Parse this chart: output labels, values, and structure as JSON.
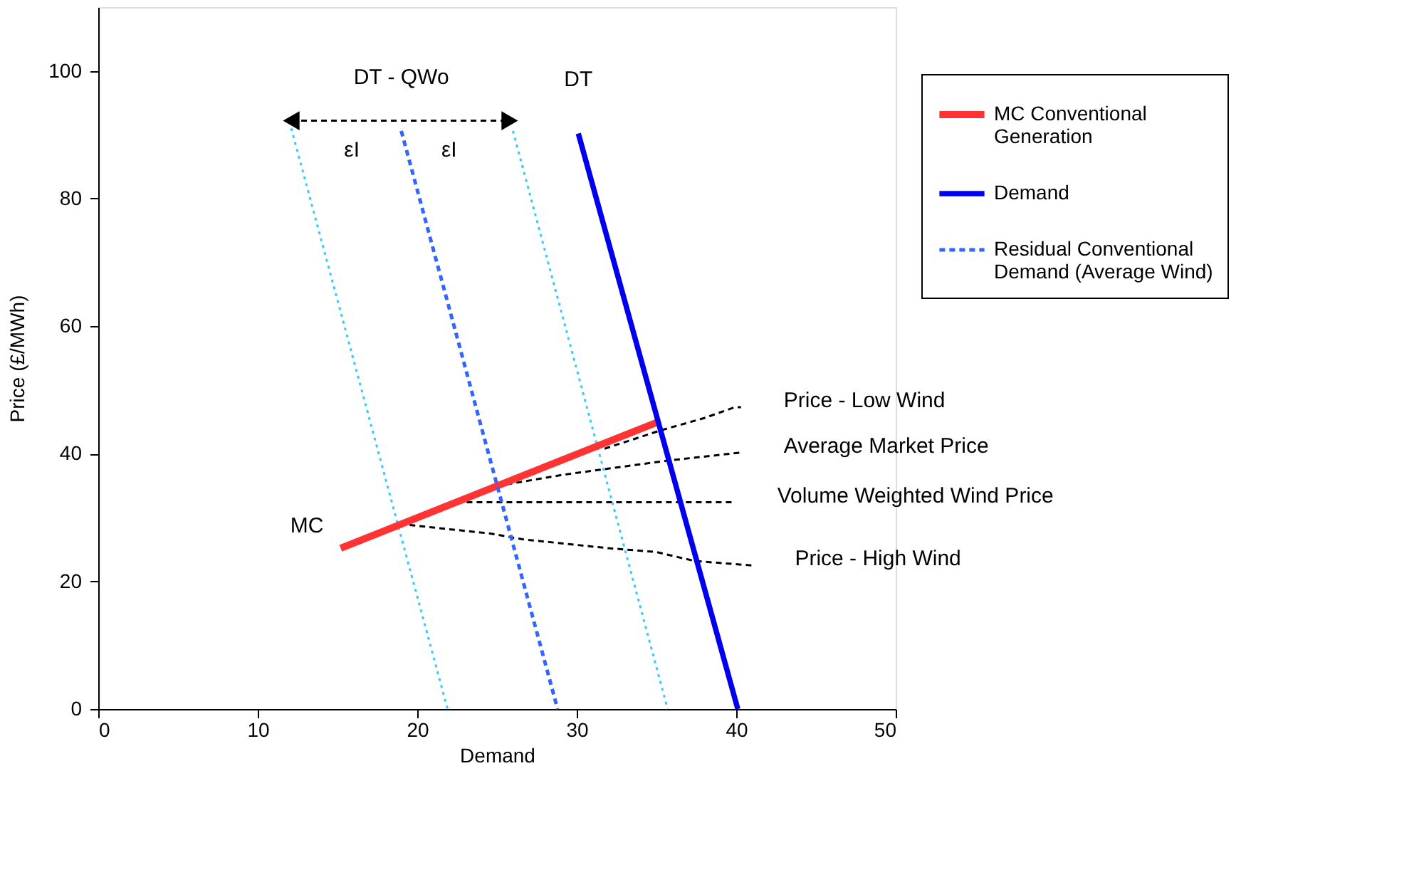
{
  "chart_data": {
    "type": "line",
    "xlabel": "Demand",
    "ylabel": "Price (£/MWh)",
    "xlim": [
      0,
      50
    ],
    "ylim": [
      0,
      110
    ],
    "xticks": [
      0,
      10,
      20,
      30,
      40,
      50
    ],
    "yticks": [
      0,
      20,
      40,
      60,
      80,
      100
    ],
    "grid": false,
    "legend": "right",
    "series": [
      {
        "name": "MC Conventional Generation",
        "color": "#ff3333",
        "line_style": "solid",
        "x": [
          15.2,
          35.0
        ],
        "values": [
          25.2,
          44.9
        ]
      },
      {
        "name": "Demand",
        "color": "#0000ee",
        "line_style": "solid",
        "x": [
          30.1,
          40.1
        ],
        "values": [
          90.2,
          0
        ]
      },
      {
        "name": "Residual Conventional Demand (Average Wind)",
        "color": "#3366ff",
        "line_style": "dashed",
        "x": [
          19.0,
          28.8
        ],
        "values": [
          90.6,
          0
        ]
      },
      {
        "color": "#33ccff",
        "line_style": "dotted",
        "x": [
          12.1,
          21.9
        ],
        "values": [
          91.0,
          0
        ]
      },
      {
        "color": "#33ccff",
        "line_style": "dotted",
        "x": [
          26.0,
          35.7
        ],
        "values": [
          90.6,
          0
        ]
      },
      {
        "color": "#000000",
        "line_style": "dashed",
        "x": [
          31.75,
          35.3,
          38.0,
          39.9,
          40.3
        ],
        "values": [
          40.8,
          43.7,
          45.6,
          47.3,
          47.3
        ]
      },
      {
        "color": "#000000",
        "line_style": "dashed",
        "x": [
          25.6,
          29.1,
          35.6,
          40.3
        ],
        "values": [
          35.2,
          36.7,
          38.9,
          40.2
        ]
      },
      {
        "color": "#000000",
        "line_style": "dashed",
        "x": [
          23.1,
          39.9
        ],
        "values": [
          32.4,
          32.4
        ]
      },
      {
        "color": "#000000",
        "line_style": "dashed",
        "x": [
          18.9,
          24.6,
          26.6,
          32.0,
          35.0,
          37.4,
          41.0
        ],
        "values": [
          29.0,
          27.5,
          26.6,
          25.2,
          24.6,
          23.2,
          22.5
        ]
      },
      {
        "color": "#000000",
        "line_style": "dashed",
        "marker": "triangle",
        "x": [
          12.1,
          25.8
        ],
        "values": [
          92.2,
          92.2
        ]
      }
    ],
    "annotations": [
      {
        "text": "MC",
        "x": 15.2,
        "y": 25.2
      },
      {
        "text": "DT - QWo",
        "x": 19.0,
        "y": 90.6
      },
      {
        "text": "DT",
        "x": 30.1,
        "y": 90.2
      },
      {
        "text": "εI",
        "x": 15.9,
        "y": 92.2
      },
      {
        "text": "εI",
        "x": 22.0,
        "y": 92.2
      },
      {
        "text": "Price - Low Wind",
        "x": 40.3,
        "y": 47.3
      },
      {
        "text": "Average Market Price",
        "x": 40.3,
        "y": 40.2
      },
      {
        "text": "Volume Weighted Wind Price",
        "x": 39.9,
        "y": 32.4
      },
      {
        "text": "Price - High Wind",
        "x": 41.0,
        "y": 22.5
      }
    ]
  }
}
